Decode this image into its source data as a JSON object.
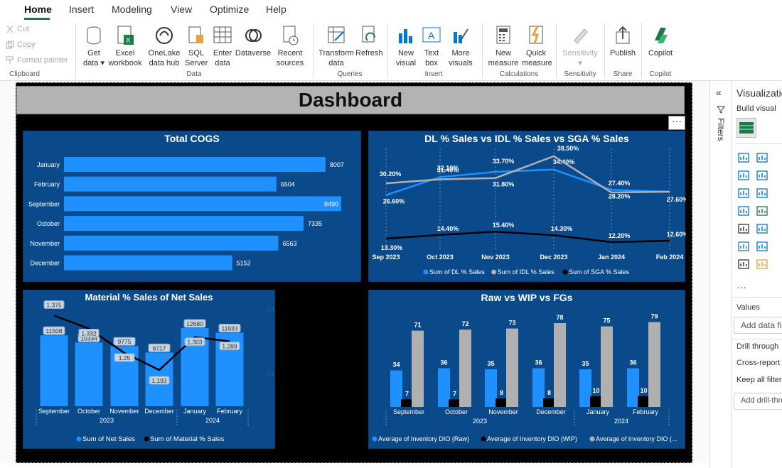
{
  "tabs": [
    "Home",
    "Insert",
    "Modeling",
    "View",
    "Optimize",
    "Help"
  ],
  "clipboard": {
    "cut": "Cut",
    "copy": "Copy",
    "format_painter": "Format painter",
    "group": "Clipboard"
  },
  "data_group": {
    "get_data": "Get data",
    "excel": "Excel workbook",
    "onelake": "OneLake data hub",
    "sql": "SQL Server",
    "enter": "Enter data",
    "dataverse": "Dataverse",
    "recent": "Recent sources",
    "group": "Data"
  },
  "queries": {
    "transform": "Transform data",
    "refresh": "Refresh",
    "group": "Queries"
  },
  "insert": {
    "new_visual": "New visual",
    "text_box": "Text box",
    "more_visuals": "More visuals",
    "group": "Insert"
  },
  "calculations": {
    "new_measure": "New measure",
    "quick_measure": "Quick measure",
    "group": "Calculations"
  },
  "sensitivity": {
    "label": "Sensitivity",
    "group": "Sensitivity"
  },
  "share": {
    "publish": "Publish",
    "group": "Share"
  },
  "copilot": {
    "label": "Copilot",
    "group": "Copilot"
  },
  "dashboard_title": "Dashboard",
  "more_options": "···",
  "filters_label": "Filters",
  "viz_pane": {
    "title": "Visualizations",
    "build": "Build visual",
    "values": "Values",
    "add_data": "Add data fields here",
    "drill": "Drill through",
    "cross_report": "Cross-report",
    "keep_filters": "Keep all filters",
    "add_drill": "Add drill-through fields here",
    "more": "···"
  },
  "chart_data": [
    {
      "type": "bar",
      "title": "Total COGS",
      "categories": [
        "January",
        "February",
        "September",
        "October",
        "November",
        "December"
      ],
      "values": [
        8007,
        6504,
        8490,
        7335,
        6563,
        5152
      ],
      "color": "#1e90ff"
    },
    {
      "type": "line",
      "title": "DL % Sales vs IDL % Sales vs SGA % Sales",
      "x": [
        "Sep 2023",
        "Oct 2023",
        "Nov 2023",
        "Dec 2023",
        "Jan 2024",
        "Feb 2024"
      ],
      "series": [
        {
          "name": "Sum of DL % Sales",
          "values": [
            26.6,
            32.1,
            33.7,
            34.4,
            28.2,
            27.6
          ],
          "labels": [
            "26.60%",
            "32.10%",
            "33.70%",
            "34.40%",
            "28.20%",
            ""
          ],
          "color": "#1e90ff"
        },
        {
          "name": "Sum of IDL % Sales",
          "values": [
            30.2,
            31.4,
            31.8,
            38.5,
            27.4,
            27.6
          ],
          "labels": [
            "30.20%",
            "31.40%",
            "31.80%",
            "38.50%",
            "27.40%",
            "27.60%"
          ],
          "color": "#b0b0b0"
        },
        {
          "name": "Sum of SGA % Sales",
          "values": [
            13.3,
            14.4,
            15.4,
            14.3,
            12.2,
            12.6
          ],
          "labels": [
            "13.30%",
            "14.40%",
            "15.40%",
            "14.30%",
            "12.20%",
            "12.60%"
          ],
          "color": "#000000"
        }
      ]
    },
    {
      "type": "bar",
      "title": "Material % Sales of Net Sales",
      "categories": [
        "September",
        "October",
        "November",
        "December",
        "January",
        "February"
      ],
      "years": [
        "2023",
        "2024"
      ],
      "series": [
        {
          "name": "Sum of Net Sales",
          "values": [
            11508,
            10334,
            9775,
            8717,
            12680,
            11933
          ],
          "color": "#1e90ff"
        },
        {
          "name": "Sum of Material % Sales",
          "values": [
            1.375,
            1.332,
            1.25,
            1.193,
            1.303,
            1.289
          ],
          "color": "#000000"
        }
      ],
      "y2ticks": [
        "1.4",
        "1.2"
      ]
    },
    {
      "type": "bar",
      "title": "Raw vs WIP vs FGs",
      "categories": [
        "September",
        "October",
        "November",
        "December",
        "January",
        "February"
      ],
      "years": [
        "2023",
        "2024"
      ],
      "series": [
        {
          "name": "Average of Inventory DIO (Raw)",
          "values": [
            34,
            36,
            35,
            36,
            35,
            36
          ],
          "color": "#1e90ff"
        },
        {
          "name": "Average of Inventory DIO (WIP)",
          "values": [
            7,
            7,
            8,
            8,
            10,
            10
          ],
          "color": "#000000"
        },
        {
          "name": "Average of Inventory DIO (...",
          "values": [
            71,
            72,
            73,
            78,
            75,
            79
          ],
          "color": "#b0b0b0"
        }
      ]
    }
  ]
}
